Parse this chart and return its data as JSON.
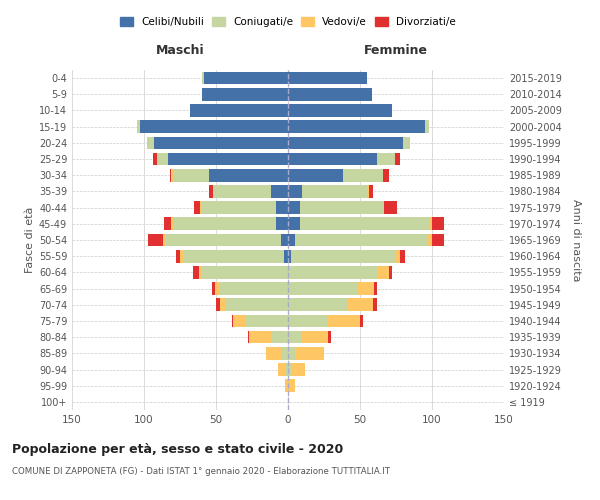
{
  "age_groups": [
    "100+",
    "95-99",
    "90-94",
    "85-89",
    "80-84",
    "75-79",
    "70-74",
    "65-69",
    "60-64",
    "55-59",
    "50-54",
    "45-49",
    "40-44",
    "35-39",
    "30-34",
    "25-29",
    "20-24",
    "15-19",
    "10-14",
    "5-9",
    "0-4"
  ],
  "birth_years": [
    "≤ 1919",
    "1920-1924",
    "1925-1929",
    "1930-1934",
    "1935-1939",
    "1940-1944",
    "1945-1949",
    "1950-1954",
    "1955-1959",
    "1960-1964",
    "1965-1969",
    "1970-1974",
    "1975-1979",
    "1980-1984",
    "1985-1989",
    "1990-1994",
    "1995-1999",
    "2000-2004",
    "2005-2009",
    "2010-2014",
    "2015-2019"
  ],
  "maschi_celibi": [
    0,
    0,
    0,
    0,
    0,
    0,
    0,
    0,
    0,
    3,
    5,
    8,
    8,
    12,
    55,
    83,
    93,
    103,
    68,
    60,
    58
  ],
  "maschi_coniugati": [
    0,
    0,
    2,
    5,
    12,
    30,
    43,
    48,
    60,
    70,
    80,
    72,
    52,
    40,
    25,
    8,
    5,
    2,
    0,
    0,
    2
  ],
  "maschi_vedovi": [
    0,
    2,
    5,
    10,
    15,
    8,
    4,
    3,
    2,
    2,
    2,
    1,
    1,
    0,
    1,
    0,
    0,
    0,
    0,
    0,
    0
  ],
  "maschi_divorziati": [
    0,
    0,
    0,
    0,
    1,
    1,
    3,
    2,
    4,
    3,
    10,
    5,
    4,
    3,
    1,
    3,
    0,
    0,
    0,
    0,
    0
  ],
  "femmine_nubili": [
    0,
    0,
    0,
    0,
    0,
    0,
    0,
    0,
    0,
    2,
    5,
    8,
    8,
    10,
    38,
    62,
    80,
    95,
    72,
    58,
    55
  ],
  "femmine_coniugate": [
    0,
    0,
    2,
    5,
    10,
    28,
    42,
    48,
    62,
    72,
    92,
    90,
    58,
    45,
    28,
    12,
    5,
    3,
    0,
    0,
    0
  ],
  "femmine_vedove": [
    0,
    5,
    10,
    20,
    18,
    22,
    17,
    12,
    8,
    4,
    3,
    2,
    1,
    1,
    0,
    0,
    0,
    0,
    0,
    0,
    0
  ],
  "femmine_divorziate": [
    0,
    0,
    0,
    0,
    2,
    2,
    3,
    2,
    2,
    3,
    8,
    8,
    9,
    3,
    4,
    4,
    0,
    0,
    0,
    0,
    0
  ],
  "colors": {
    "celibi": "#4472a8",
    "coniugati": "#c5d6a0",
    "vedovi": "#ffc764",
    "divorziati": "#e03030"
  },
  "title": "Popolazione per età, sesso e stato civile - 2020",
  "subtitle": "COMUNE DI ZAPPONETA (FG) - Dati ISTAT 1° gennaio 2020 - Elaborazione TUTTITALIA.IT",
  "xlabel_left": "Maschi",
  "xlabel_right": "Femmine",
  "ylabel_left": "Fasce di età",
  "ylabel_right": "Anni di nascita",
  "xlim": 150,
  "background_color": "#ffffff",
  "grid_color": "#cccccc",
  "legend_labels": [
    "Celibi/Nubili",
    "Coniugati/e",
    "Vedovi/e",
    "Divorziati/e"
  ]
}
